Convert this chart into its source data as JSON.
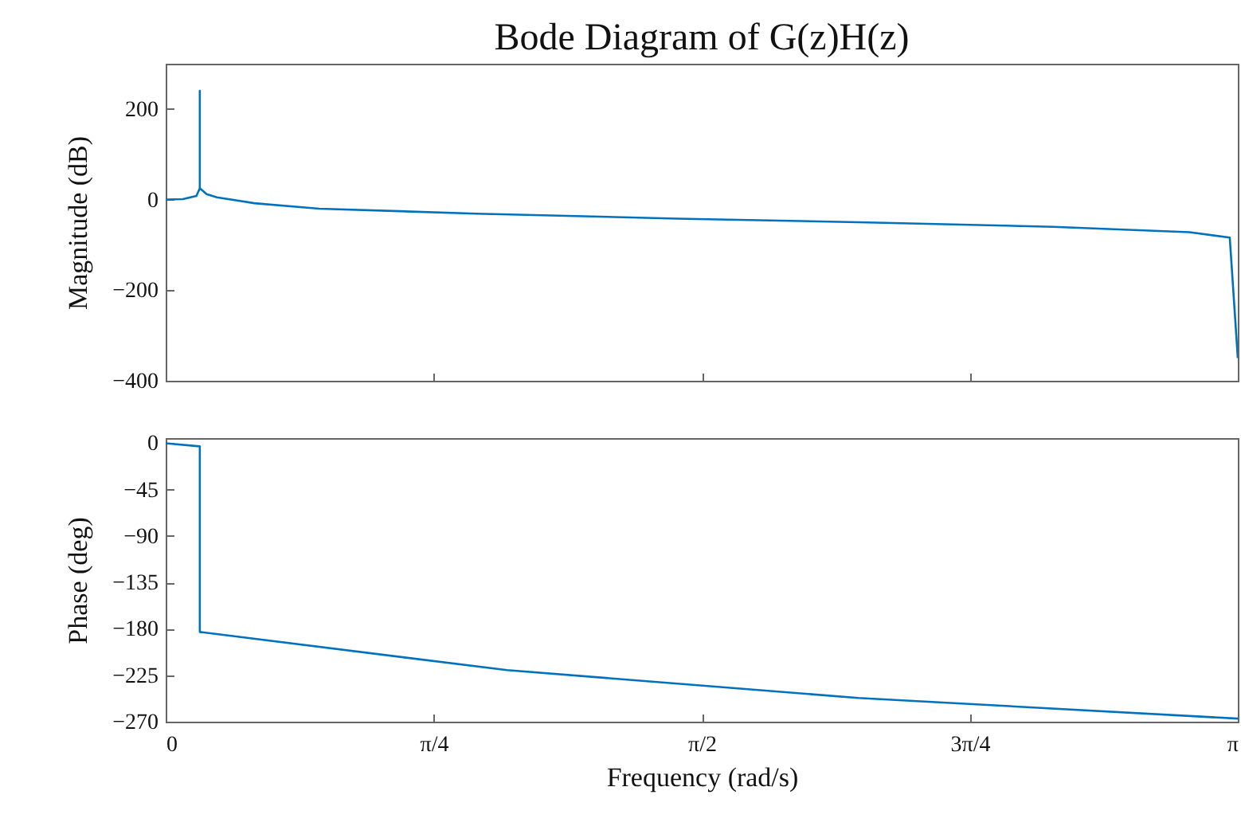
{
  "chart_data": [
    {
      "type": "line",
      "title": "Bode Diagram of G(z)H(z)",
      "ylabel": "Magnitude (dB)",
      "tick_labels": "y",
      "xlim": [
        0,
        3.14159
      ],
      "xticks": [
        {
          "value": 0,
          "label": null
        },
        {
          "value": 0.7854,
          "label": null
        },
        {
          "value": 1.5708,
          "label": null
        },
        {
          "value": 2.3562,
          "label": null
        },
        {
          "value": 3.14159,
          "label": null
        }
      ],
      "ylim": [
        -400,
        300
      ],
      "yticks": [
        {
          "value": -400,
          "label": "−400"
        },
        {
          "value": -200,
          "label": "−200"
        },
        {
          "value": 0,
          "label": "0"
        },
        {
          "value": 200,
          "label": "200"
        }
      ],
      "series": [
        {
          "color": "#0072bd",
          "x": [
            0,
            0.05,
            0.09,
            0.1,
            0.1,
            0.1,
            0.12,
            0.15,
            0.26,
            0.45,
            0.91,
            1.5,
            2.03,
            2.6,
            3.0,
            3.118,
            3.14159
          ],
          "values": [
            0,
            1,
            8,
            25,
            240,
            25,
            12,
            5,
            -8,
            -20,
            -31,
            -42,
            -50,
            -60,
            -72,
            -84,
            -350
          ]
        }
      ]
    },
    {
      "type": "line",
      "xlabel": "Frequency (rad/s)",
      "ylabel": "Phase (deg)",
      "xlim": [
        0,
        3.14159
      ],
      "xticks": [
        {
          "value": 0,
          "label": "0"
        },
        {
          "value": 0.7854,
          "label": "π/4"
        },
        {
          "value": 1.5708,
          "label": "π/2"
        },
        {
          "value": 2.3562,
          "label": "3π/4"
        },
        {
          "value": 3.14159,
          "label": "π"
        }
      ],
      "ylim": [
        -270,
        5
      ],
      "yticks": [
        {
          "value": -270,
          "label": "−270"
        },
        {
          "value": -225,
          "label": "−225"
        },
        {
          "value": -180,
          "label": "−180"
        },
        {
          "value": -135,
          "label": "−135"
        },
        {
          "value": -90,
          "label": "−90"
        },
        {
          "value": -45,
          "label": "−45"
        },
        {
          "value": 0,
          "label": "0"
        }
      ],
      "series": [
        {
          "color": "#0072bd",
          "x": [
            0,
            0.1,
            0.1,
            1.0,
            2.03,
            3.14159
          ],
          "values": [
            0,
            -3,
            -183,
            -220,
            -247,
            -267
          ]
        }
      ]
    }
  ]
}
